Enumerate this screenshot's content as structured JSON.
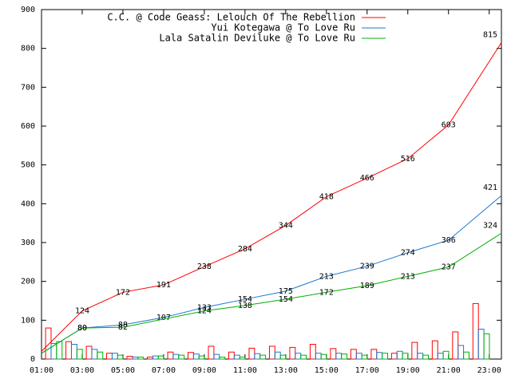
{
  "chart_data": {
    "type": "line",
    "legend": "top-right",
    "xlim": [
      1,
      23.6
    ],
    "ylim": [
      0,
      900
    ],
    "xticks": [
      {
        "value": 1,
        "label": "01:00"
      },
      {
        "value": 3,
        "label": "03:00"
      },
      {
        "value": 5,
        "label": "05:00"
      },
      {
        "value": 7,
        "label": "07:00"
      },
      {
        "value": 9,
        "label": "09:00"
      },
      {
        "value": 11,
        "label": "11:00"
      },
      {
        "value": 13,
        "label": "13:00"
      },
      {
        "value": 15,
        "label": "15:00"
      },
      {
        "value": 17,
        "label": "17:00"
      },
      {
        "value": 19,
        "label": "19:00"
      },
      {
        "value": 21,
        "label": "21:00"
      },
      {
        "value": 23,
        "label": "23:00"
      }
    ],
    "yticks": [
      0,
      100,
      200,
      300,
      400,
      500,
      600,
      700,
      800,
      900
    ],
    "series": [
      {
        "name": "C.C. @ Code Geass: Lelouch Of The Rebellion",
        "color": "#ff0000",
        "x": [
          1,
          3,
          5,
          7,
          9,
          11,
          13,
          15,
          17,
          19,
          21,
          23.6
        ],
        "values": [
          20,
          124,
          172,
          191,
          238,
          284,
          344,
          418,
          466,
          516,
          603,
          815
        ]
      },
      {
        "name": "Yui Kotegawa @ To Love Ru",
        "color": "#1a78d0",
        "x": [
          1,
          3,
          5,
          7,
          9,
          11,
          13,
          15,
          17,
          19,
          21,
          23.6
        ],
        "values": [
          15,
          80,
          88,
          107,
          133,
          154,
          175,
          213,
          239,
          274,
          306,
          421
        ]
      },
      {
        "name": "Lala Satalin Deviluke @ To Love Ru",
        "color": "#00b000",
        "x": [
          1,
          3,
          5,
          9,
          11,
          13,
          15,
          17,
          19,
          21,
          23.6
        ],
        "values": [
          15,
          80,
          82,
          124,
          138,
          154,
          172,
          189,
          213,
          237,
          324
        ]
      }
    ],
    "bar_x": [
      1,
      2,
      3,
      4,
      5,
      6,
      7,
      8,
      9,
      10,
      11,
      12,
      13,
      14,
      15,
      16,
      17,
      18,
      19,
      20,
      21,
      22
    ],
    "bar_series": [
      {
        "color": "#ff0000",
        "values": [
          80,
          45,
          33,
          15,
          7,
          5,
          18,
          17,
          33,
          18,
          28,
          33,
          30,
          38,
          27,
          25,
          25,
          15,
          43,
          47,
          70,
          143
        ]
      },
      {
        "color": "#1a78d0",
        "values": [
          40,
          38,
          25,
          15,
          5,
          8,
          12,
          13,
          12,
          10,
          14,
          18,
          15,
          15,
          15,
          15,
          17,
          20,
          15,
          15,
          35,
          77
        ]
      },
      {
        "color": "#00b000",
        "values": [
          45,
          25,
          18,
          10,
          5,
          8,
          10,
          8,
          5,
          5,
          10,
          10,
          10,
          12,
          13,
          10,
          15,
          15,
          10,
          20,
          18,
          65
        ]
      }
    ]
  }
}
